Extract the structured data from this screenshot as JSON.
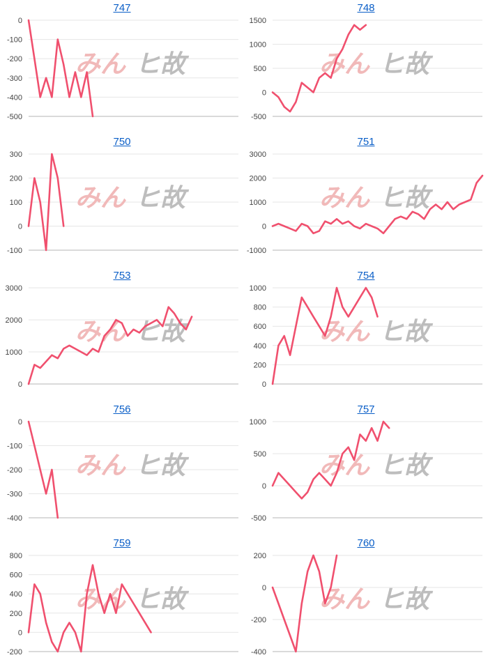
{
  "colors": {
    "line": "#f0506e",
    "title": "#0a5ec7",
    "grid": "#e6e6e6",
    "axis": "#b5b5b5"
  },
  "watermark": {
    "part1": "みん",
    "part2": "ヒ故"
  },
  "chart_data": [
    {
      "type": "line",
      "title": "747",
      "ylim": [
        -500,
        0
      ],
      "yticks": [
        0,
        -100,
        -200,
        -300,
        -400,
        -500
      ],
      "xmax": 36,
      "y": [
        0,
        -200,
        -400,
        -300,
        -400,
        -100,
        -230,
        -400,
        -270,
        -400,
        -270,
        -500
      ]
    },
    {
      "type": "line",
      "title": "748",
      "ylim": [
        -500,
        1500
      ],
      "yticks": [
        1500,
        1000,
        500,
        0,
        -500
      ],
      "xmax": 36,
      "y": [
        0,
        -100,
        -300,
        -400,
        -200,
        200,
        100,
        0,
        300,
        400,
        300,
        700,
        900,
        1200,
        1400,
        1300,
        1400
      ]
    },
    {
      "type": "line",
      "title": "750",
      "ylim": [
        -100,
        300
      ],
      "yticks": [
        300,
        200,
        100,
        0,
        -100
      ],
      "xmax": 36,
      "y": [
        0,
        200,
        100,
        -100,
        300,
        200,
        0
      ]
    },
    {
      "type": "line",
      "title": "751",
      "ylim": [
        -1000,
        3000
      ],
      "yticks": [
        3000,
        2000,
        1000,
        0,
        -1000
      ],
      "xmax": 36,
      "y": [
        0,
        100,
        0,
        -100,
        -200,
        100,
        0,
        -300,
        -200,
        200,
        100,
        300,
        100,
        200,
        0,
        -100,
        100,
        0,
        -100,
        -300,
        0,
        300,
        400,
        300,
        600,
        500,
        300,
        700,
        900,
        700,
        1000,
        700,
        900,
        1000,
        1100,
        1800,
        2100
      ]
    },
    {
      "type": "line",
      "title": "753",
      "ylim": [
        0,
        3000
      ],
      "yticks": [
        3000,
        2000,
        1000,
        0
      ],
      "xmax": 36,
      "y": [
        0,
        600,
        500,
        700,
        900,
        800,
        1100,
        1200,
        1100,
        1000,
        900,
        1100,
        1000,
        1500,
        1700,
        2000,
        1900,
        1500,
        1700,
        1600,
        1800,
        1900,
        2000,
        1800,
        2400,
        2200,
        1900,
        1700,
        2100
      ]
    },
    {
      "type": "line",
      "title": "754",
      "ylim": [
        0,
        1000
      ],
      "yticks": [
        1000,
        800,
        600,
        400,
        200,
        0
      ],
      "xmax": 36,
      "y": [
        0,
        400,
        500,
        300,
        600,
        900,
        800,
        700,
        600,
        500,
        700,
        1000,
        800,
        700,
        800,
        900,
        1000,
        900,
        700
      ]
    },
    {
      "type": "line",
      "title": "756",
      "ylim": [
        -400,
        0
      ],
      "yticks": [
        0,
        -100,
        -200,
        -300,
        -400
      ],
      "xmax": 36,
      "y": [
        0,
        -100,
        -200,
        -300,
        -200,
        -400
      ]
    },
    {
      "type": "line",
      "title": "757",
      "ylim": [
        -500,
        1000
      ],
      "yticks": [
        1000,
        500,
        0,
        -500
      ],
      "xmax": 36,
      "y": [
        0,
        200,
        100,
        0,
        -100,
        -200,
        -100,
        100,
        200,
        100,
        0,
        200,
        500,
        600,
        400,
        800,
        700,
        900,
        700,
        1000,
        900
      ]
    },
    {
      "type": "line",
      "title": "759",
      "ylim": [
        -200,
        800
      ],
      "yticks": [
        800,
        600,
        400,
        200,
        0,
        -200
      ],
      "xmax": 36,
      "y": [
        0,
        500,
        400,
        100,
        -100,
        -200,
        0,
        100,
        0,
        -200,
        400,
        700,
        400,
        200,
        400,
        200,
        500,
        400,
        300,
        200,
        100,
        0
      ]
    },
    {
      "type": "line",
      "title": "760",
      "ylim": [
        -400,
        200
      ],
      "yticks": [
        200,
        0,
        -200,
        -400
      ],
      "xmax": 36,
      "y": [
        0,
        -100,
        -200,
        -300,
        -400,
        -100,
        100,
        200,
        100,
        -100,
        0,
        200
      ]
    }
  ]
}
